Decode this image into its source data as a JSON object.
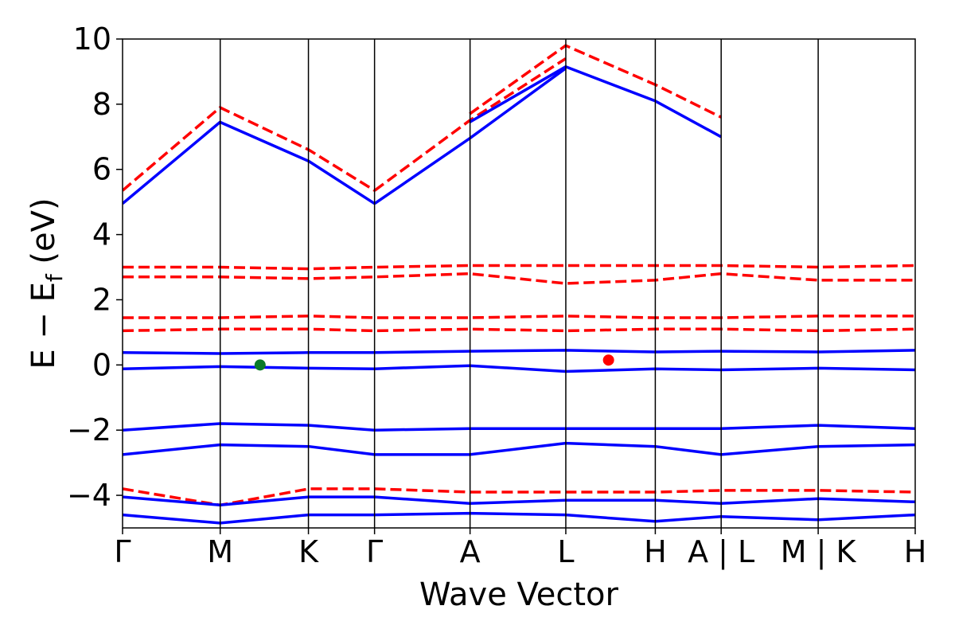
{
  "chart_data": {
    "type": "line",
    "xlabel": "Wave Vector",
    "ylabel_main": "E − E",
    "ylabel_sub": "f",
    "ylabel_unit": " (eV)",
    "ylim": [
      -5,
      10
    ],
    "yticks": [
      -4,
      -2,
      0,
      2,
      4,
      6,
      8,
      10
    ],
    "ytick_labels": [
      "−4",
      "−2",
      "0",
      "2",
      "4",
      "6",
      "8",
      "10"
    ],
    "kpath_labels": [
      "Γ",
      "M",
      "K",
      "Γ",
      "A",
      "L",
      "H",
      "A | L",
      "M | K",
      "H"
    ],
    "kpath_positions": [
      0,
      0.1232,
      0.2345,
      0.3179,
      0.4384,
      0.5592,
      0.6721,
      0.7552,
      0.8776,
      1.0
    ],
    "grid": false,
    "colors": {
      "spin_up": "#0000ff",
      "spin_down": "#ff0000",
      "green_marker": "#0a7a2a",
      "red_marker": "#ff0000"
    },
    "series": [
      {
        "style": "solid",
        "x": [
          0,
          0.123,
          0.235,
          0.318
        ],
        "y": [
          4.95,
          7.45,
          6.25,
          4.95
        ]
      },
      {
        "style": "dashed",
        "x": [
          0,
          0.123,
          0.235,
          0.318
        ],
        "y": [
          5.35,
          7.9,
          6.6,
          5.35
        ]
      },
      {
        "style": "solid",
        "x": [
          0.318,
          0.438,
          0.559
        ],
        "y": [
          4.95,
          6.95,
          9.1
        ]
      },
      {
        "style": "dashed",
        "x": [
          0.318,
          0.438,
          0.559
        ],
        "y": [
          5.35,
          7.5,
          9.4
        ]
      },
      {
        "style": "solid",
        "x": [
          0.438,
          0.559,
          0.672,
          0.755
        ],
        "y": [
          7.45,
          9.15,
          8.1,
          7.0
        ]
      },
      {
        "style": "dashed",
        "x": [
          0.438,
          0.559,
          0.672,
          0.755
        ],
        "y": [
          7.7,
          9.8,
          8.6,
          7.6
        ]
      },
      {
        "style": "solid",
        "x": [
          0,
          0.123,
          0.235,
          0.318,
          0.438,
          0.559,
          0.672,
          0.755,
          0.878,
          1.0
        ],
        "y": [
          0.38,
          0.35,
          0.38,
          0.38,
          0.42,
          0.45,
          0.4,
          0.42,
          0.4,
          0.45
        ]
      },
      {
        "style": "solid",
        "x": [
          0,
          0.123,
          0.235,
          0.318,
          0.438,
          0.559,
          0.672,
          0.755,
          0.878,
          1.0
        ],
        "y": [
          -0.12,
          -0.05,
          -0.1,
          -0.12,
          -0.02,
          -0.2,
          -0.12,
          -0.15,
          -0.1,
          -0.15
        ]
      },
      {
        "style": "solid",
        "x": [
          0,
          0.123,
          0.235,
          0.318,
          0.438,
          0.559,
          0.672,
          0.755,
          0.878,
          1.0
        ],
        "y": [
          -2.0,
          -1.8,
          -1.85,
          -2.0,
          -1.95,
          -1.95,
          -1.95,
          -1.95,
          -1.85,
          -1.95
        ]
      },
      {
        "style": "solid",
        "x": [
          0,
          0.123,
          0.235,
          0.318,
          0.438,
          0.559,
          0.672,
          0.755,
          0.878,
          1.0
        ],
        "y": [
          -2.75,
          -2.45,
          -2.5,
          -2.75,
          -2.75,
          -2.4,
          -2.5,
          -2.75,
          -2.5,
          -2.45
        ]
      },
      {
        "style": "dashed",
        "x": [
          0,
          0.123,
          0.235,
          0.318,
          0.438,
          0.559,
          0.672,
          0.755,
          0.878,
          1.0
        ],
        "y": [
          2.7,
          2.7,
          2.65,
          2.7,
          2.8,
          2.5,
          2.6,
          2.8,
          2.6,
          2.6
        ]
      },
      {
        "style": "dashed",
        "x": [
          0,
          0.123,
          0.235,
          0.318,
          0.438,
          0.559,
          0.672,
          0.755,
          0.878,
          1.0
        ],
        "y": [
          3.0,
          3.0,
          2.95,
          3.0,
          3.05,
          3.05,
          3.05,
          3.05,
          3.0,
          3.05
        ]
      },
      {
        "style": "dashed",
        "x": [
          0,
          0.123,
          0.235,
          0.318,
          0.438,
          0.559,
          0.672,
          0.755,
          0.878,
          1.0
        ],
        "y": [
          1.05,
          1.1,
          1.1,
          1.05,
          1.1,
          1.05,
          1.1,
          1.1,
          1.05,
          1.1
        ]
      },
      {
        "style": "dashed",
        "x": [
          0,
          0.123,
          0.235,
          0.318,
          0.438,
          0.559,
          0.672,
          0.755,
          0.878,
          1.0
        ],
        "y": [
          1.45,
          1.45,
          1.5,
          1.45,
          1.45,
          1.5,
          1.45,
          1.45,
          1.5,
          1.5
        ]
      },
      {
        "style": "dashed",
        "x": [
          0,
          0.123,
          0.235,
          0.318,
          0.438,
          0.559,
          0.672,
          0.755,
          0.878,
          1.0
        ],
        "y": [
          -3.8,
          -4.3,
          -3.8,
          -3.8,
          -3.9,
          -3.9,
          -3.9,
          -3.85,
          -3.85,
          -3.9
        ]
      },
      {
        "style": "solid",
        "x": [
          0,
          0.123,
          0.235,
          0.318,
          0.438,
          0.559,
          0.672,
          0.755,
          0.878,
          1.0
        ],
        "y": [
          -4.05,
          -4.3,
          -4.05,
          -4.05,
          -4.25,
          -4.15,
          -4.15,
          -4.25,
          -4.1,
          -4.2
        ]
      },
      {
        "style": "solid",
        "x": [
          0,
          0.123,
          0.235,
          0.318,
          0.438,
          0.559,
          0.672,
          0.755,
          0.878,
          1.0
        ],
        "y": [
          -4.6,
          -4.85,
          -4.6,
          -4.6,
          -4.55,
          -4.6,
          -4.8,
          -4.65,
          -4.75,
          -4.6
        ]
      }
    ],
    "markers": [
      {
        "x": 0.1735,
        "y": 0.0,
        "color": "green"
      },
      {
        "x": 0.6131,
        "y": 0.15,
        "color": "red"
      }
    ]
  }
}
